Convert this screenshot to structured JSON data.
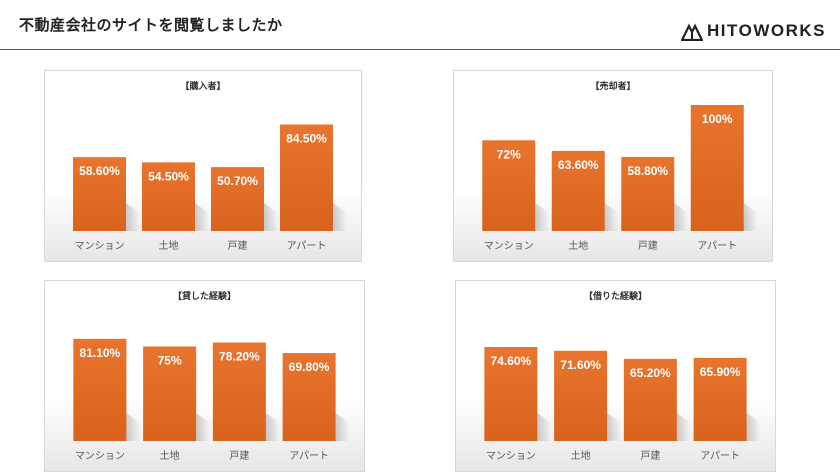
{
  "header": {
    "title": "不動産会社のサイトを閲覧しましたか",
    "logo_text": "HITOWORKS",
    "logo_icon": "mountain-logo-icon"
  },
  "colors": {
    "bar": "#e8742e",
    "bar_dark": "#d9621c",
    "text": "#222222"
  },
  "chart_data": [
    {
      "type": "bar",
      "title": "【購入者】",
      "categories": [
        "マンション",
        "土地",
        "戸建",
        "アパート"
      ],
      "values": [
        58.6,
        54.5,
        50.7,
        84.5
      ],
      "labels": [
        "58.60%",
        "54.50%",
        "50.70%",
        "84.50%"
      ],
      "ylim": [
        0,
        100
      ],
      "grid": false,
      "legend": "none"
    },
    {
      "type": "bar",
      "title": "【売却者】",
      "categories": [
        "マンション",
        "土地",
        "戸建",
        "アパート"
      ],
      "values": [
        72,
        63.6,
        58.8,
        100
      ],
      "labels": [
        "72%",
        "63.60%",
        "58.80%",
        "100%"
      ],
      "ylim": [
        0,
        100
      ],
      "grid": false,
      "legend": "none"
    },
    {
      "type": "bar",
      "title": "【貸した経験】",
      "categories": [
        "マンション",
        "土地",
        "戸建",
        "アパート"
      ],
      "values": [
        81.1,
        75,
        78.2,
        69.8
      ],
      "labels": [
        "81.10%",
        "75%",
        "78.20%",
        "69.80%"
      ],
      "ylim": [
        0,
        100
      ],
      "grid": false,
      "legend": "none"
    },
    {
      "type": "bar",
      "title": "【借りた経験】",
      "categories": [
        "マンション",
        "土地",
        "戸建",
        "アパート"
      ],
      "values": [
        74.6,
        71.6,
        65.2,
        65.9
      ],
      "labels": [
        "74.60%",
        "71.60%",
        "65.20%",
        "65.90%"
      ],
      "ylim": [
        0,
        100
      ],
      "grid": false,
      "legend": "none"
    }
  ]
}
